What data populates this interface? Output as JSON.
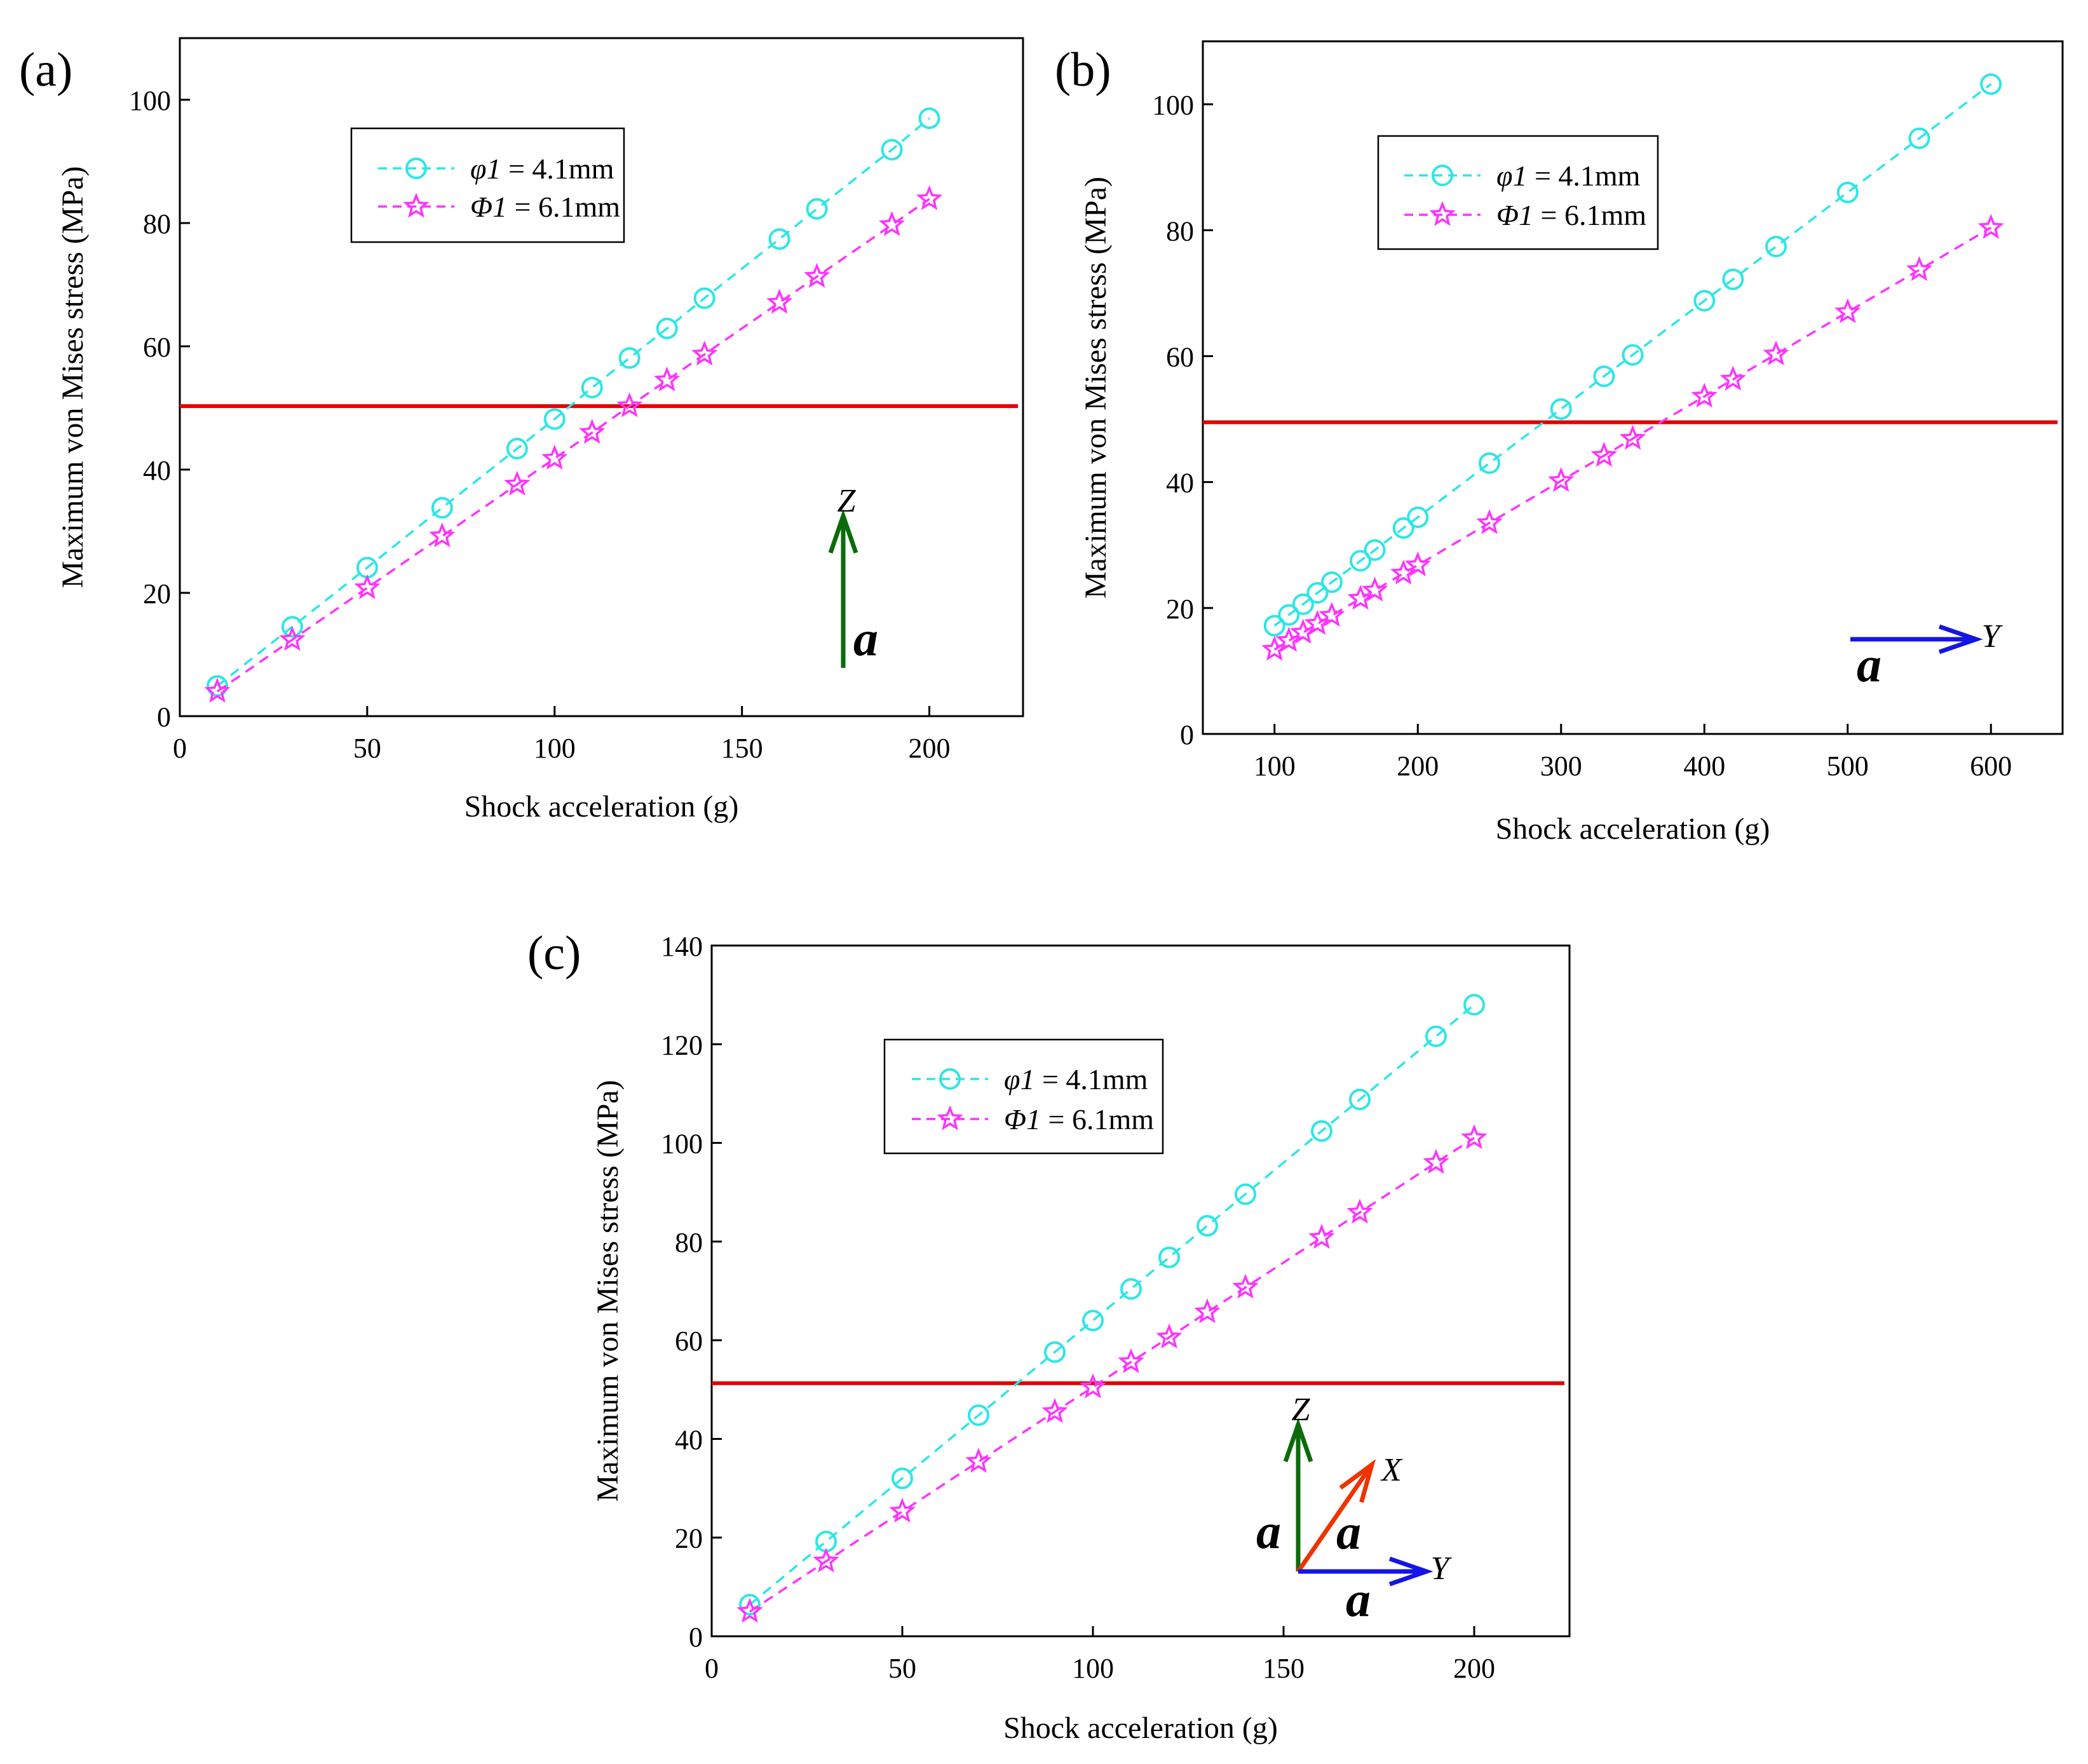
{
  "chart_data": [
    {
      "id": "a",
      "type": "line",
      "panel_label": "(a)",
      "xlabel": "Shock acceleration (g)",
      "ylabel": "Maximum von Mises stress (MPa)",
      "xlim": [
        0,
        225
      ],
      "ylim": [
        0,
        110
      ],
      "xticks": [
        0,
        50,
        100,
        150,
        200
      ],
      "yticks": [
        0,
        20,
        40,
        60,
        80,
        100
      ],
      "grid": false,
      "legend_position": "top-left",
      "threshold": {
        "value": 50.3,
        "color": "#e00000"
      },
      "series": [
        {
          "legend_var": "φ1",
          "legend_value": " = 4.1mm",
          "marker": "circle",
          "color": "#2ee6e6",
          "x": [
            10,
            30,
            50,
            70,
            90,
            100,
            110,
            120,
            130,
            140,
            160,
            170,
            190,
            200
          ],
          "y": [
            4.9,
            14.5,
            24.1,
            33.8,
            43.4,
            48.2,
            53.3,
            58.1,
            62.9,
            67.8,
            77.4,
            82.3,
            91.9,
            97.0
          ]
        },
        {
          "legend_var": "Φ1",
          "legend_value": " = 6.1mm",
          "marker": "star",
          "color": "#ff33ff",
          "x": [
            10,
            30,
            50,
            70,
            90,
            100,
            110,
            120,
            130,
            140,
            160,
            170,
            190,
            200
          ],
          "y": [
            4.0,
            12.4,
            20.8,
            29.2,
            37.6,
            41.8,
            46.0,
            50.3,
            54.5,
            58.7,
            67.1,
            71.3,
            79.7,
            83.9
          ]
        }
      ],
      "annotation": {
        "vectors": [
          {
            "axis": "Z",
            "color": "#0b6b0b",
            "label": "a"
          }
        ]
      }
    },
    {
      "id": "b",
      "type": "line",
      "panel_label": "(b)",
      "xlabel": "Shock acceleration (g)",
      "ylabel": "Maximum von Mises stress (MPa)",
      "xlim": [
        50,
        650
      ],
      "ylim": [
        0,
        110
      ],
      "xticks": [
        100,
        200,
        300,
        400,
        500,
        600
      ],
      "yticks": [
        0,
        20,
        40,
        60,
        80,
        100
      ],
      "grid": false,
      "legend_position": "top-left",
      "threshold": {
        "value": 49.5,
        "color": "#e00000"
      },
      "series": [
        {
          "legend_var": "φ1",
          "legend_value": " = 4.1mm",
          "marker": "circle",
          "color": "#2ee6e6",
          "x": [
            100,
            110,
            120,
            130,
            140,
            160,
            170,
            190,
            200,
            250,
            300,
            330,
            350,
            400,
            420,
            450,
            500,
            550,
            600
          ],
          "y": [
            17.2,
            18.9,
            20.6,
            22.4,
            24.1,
            27.5,
            29.2,
            32.7,
            34.4,
            43.0,
            51.6,
            56.8,
            60.2,
            68.8,
            72.2,
            77.4,
            86.0,
            94.6,
            103.2
          ]
        },
        {
          "legend_var": "Φ1",
          "legend_value": " = 6.1mm",
          "marker": "star",
          "color": "#ff33ff",
          "x": [
            100,
            110,
            120,
            130,
            140,
            160,
            170,
            190,
            200,
            250,
            300,
            330,
            350,
            400,
            420,
            450,
            500,
            550,
            600
          ],
          "y": [
            13.4,
            14.8,
            16.1,
            17.5,
            18.8,
            21.5,
            22.8,
            25.5,
            26.8,
            33.5,
            40.2,
            44.2,
            46.9,
            53.6,
            56.3,
            60.3,
            67.0,
            73.7,
            80.4
          ]
        }
      ],
      "annotation": {
        "vectors": [
          {
            "axis": "Y",
            "color": "#1414e6",
            "label": "a"
          }
        ]
      }
    },
    {
      "id": "c",
      "type": "line",
      "panel_label": "(c)",
      "xlabel": "Shock acceleration (g)",
      "ylabel": "Maximum von Mises stress (MPa)",
      "xlim": [
        0,
        225
      ],
      "ylim": [
        0,
        140
      ],
      "xticks": [
        0,
        50,
        100,
        150,
        200
      ],
      "yticks": [
        0,
        20,
        40,
        60,
        80,
        100,
        120,
        140
      ],
      "grid": false,
      "legend_position": "top-left",
      "threshold": {
        "value": 51.3,
        "color": "#e00000"
      },
      "series": [
        {
          "legend_var": "φ1",
          "legend_value": " = 4.1mm",
          "marker": "circle",
          "color": "#2ee6e6",
          "x": [
            10,
            30,
            50,
            70,
            90,
            100,
            110,
            120,
            130,
            140,
            160,
            170,
            190,
            200
          ],
          "y": [
            6.4,
            19.2,
            32.0,
            44.8,
            57.6,
            64.0,
            70.4,
            76.8,
            83.2,
            89.6,
            102.4,
            108.8,
            121.6,
            128.0
          ]
        },
        {
          "legend_var": "Φ1",
          "legend_value": " = 6.1mm",
          "marker": "star",
          "color": "#ff33ff",
          "x": [
            10,
            30,
            50,
            70,
            90,
            100,
            110,
            120,
            130,
            140,
            160,
            170,
            190,
            200
          ],
          "y": [
            5.0,
            15.2,
            25.3,
            35.4,
            45.5,
            50.5,
            55.6,
            60.6,
            65.7,
            70.7,
            80.8,
            85.9,
            96.0,
            101.0
          ]
        }
      ],
      "annotation": {
        "vectors": [
          {
            "axis": "Z",
            "color": "#0b6b0b",
            "label": "a"
          },
          {
            "axis": "X",
            "color": "#ee3300",
            "label": "a"
          },
          {
            "axis": "Y",
            "color": "#1414e6",
            "label": "a"
          }
        ]
      }
    }
  ]
}
